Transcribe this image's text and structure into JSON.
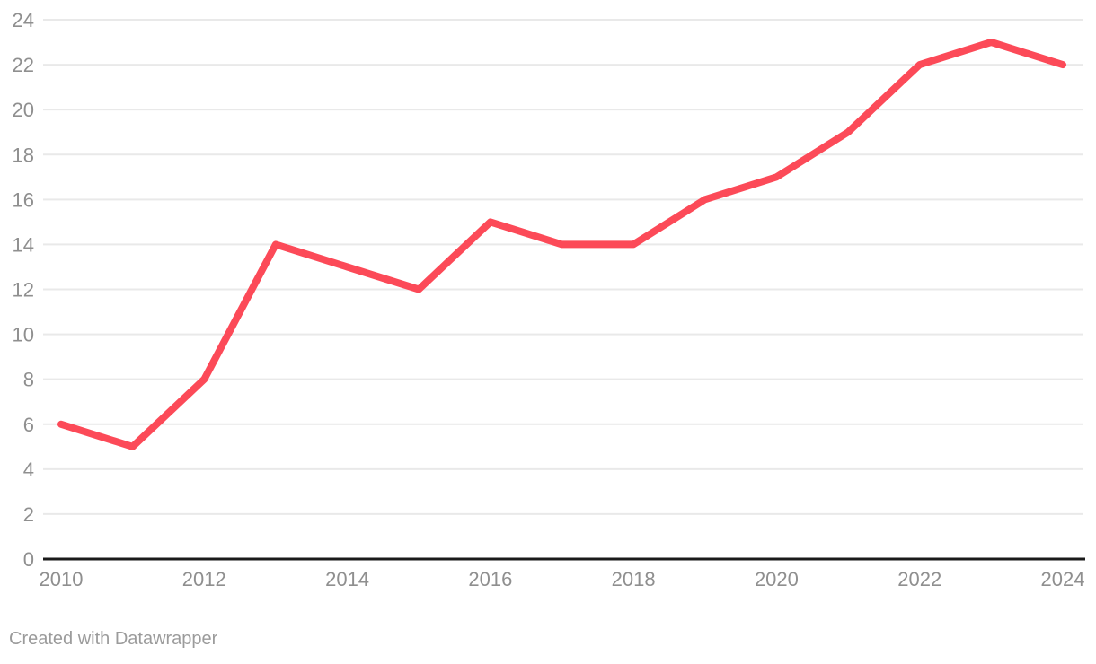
{
  "footer": {
    "credit": "Created with Datawrapper"
  },
  "chart_data": {
    "type": "line",
    "title": "",
    "xlabel": "",
    "ylabel": "",
    "x": [
      2010,
      2011,
      2012,
      2013,
      2014,
      2015,
      2016,
      2017,
      2018,
      2019,
      2020,
      2021,
      2022,
      2023,
      2024
    ],
    "series": [
      {
        "name": "value",
        "values": [
          6,
          5,
          8,
          14,
          13,
          12,
          15,
          14,
          14,
          16,
          17,
          19,
          22,
          23,
          22
        ]
      }
    ],
    "xlim": [
      2010,
      2024
    ],
    "ylim": [
      0,
      24
    ],
    "y_ticks": [
      0,
      2,
      4,
      6,
      8,
      10,
      12,
      14,
      16,
      18,
      20,
      22,
      24
    ],
    "y_tick_labels": [
      "0",
      "2",
      "4",
      "6",
      "8",
      "10",
      "12",
      "14",
      "16",
      "18",
      "20",
      "22",
      "24"
    ],
    "x_ticks": [
      2010,
      2012,
      2014,
      2016,
      2018,
      2020,
      2022,
      2024
    ],
    "x_tick_labels": [
      "2010",
      "2012",
      "2014",
      "2016",
      "2018",
      "2020",
      "2022",
      "2024"
    ],
    "grid": "horizontal",
    "legend": "none",
    "colors": {
      "line": "#fc4a58",
      "gridline": "#e9e9e9",
      "axis_line": "#1a1a1a",
      "tick_label": "#8f8f8f",
      "footer_text": "#9b9b9b",
      "background": "#ffffff"
    }
  }
}
